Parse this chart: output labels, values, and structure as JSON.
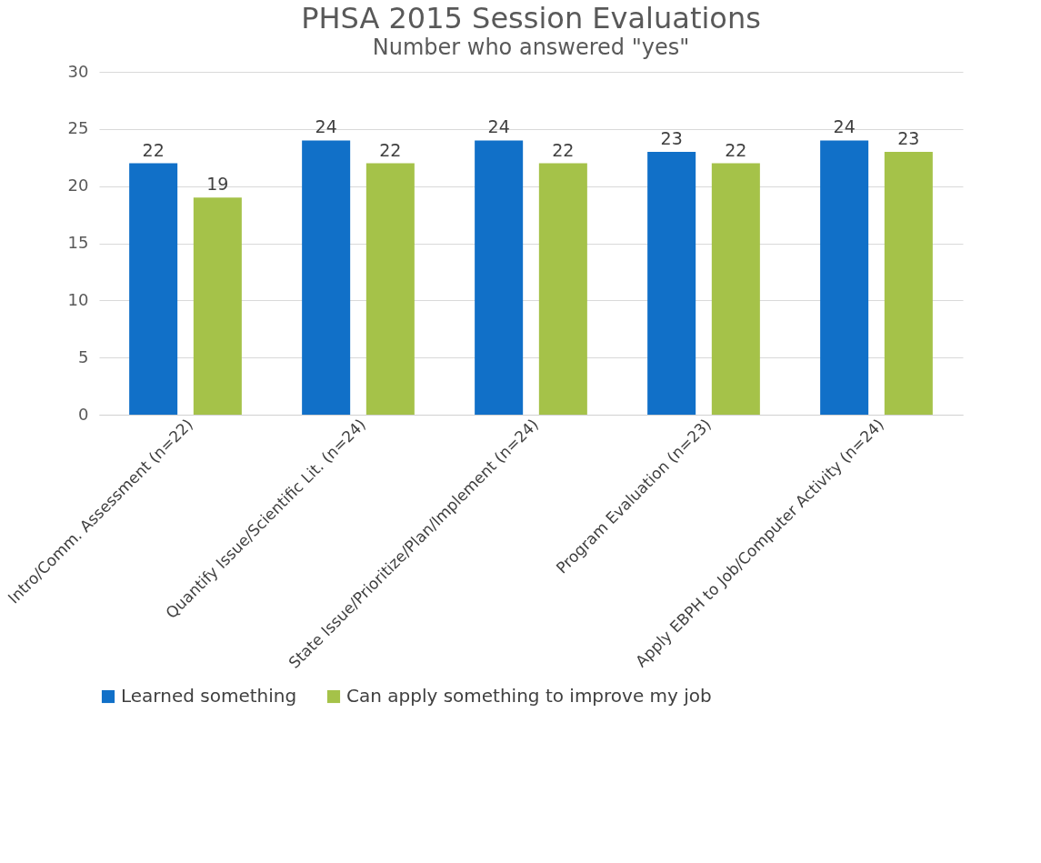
{
  "chart_data": {
    "type": "bar",
    "title": "PHSA 2015 Session Evaluations",
    "subtitle": "Number who answered \"yes\"",
    "categories": [
      "Intro/Comm. Assessment (n=22)",
      "Quantify Issue/Scientific Lit. (n=24)",
      "State Issue/Prioritize/Plan/Implement (n=24)",
      "Program Evaluation (n=23)",
      "Apply EBPH to Job/Computer Activity (n=24)"
    ],
    "series": [
      {
        "name": "Learned something",
        "color": "#1170c8",
        "values": [
          22,
          24,
          24,
          23,
          24
        ]
      },
      {
        "name": "Can apply something to improve my job",
        "color": "#a5c249",
        "values": [
          19,
          22,
          22,
          22,
          23
        ]
      }
    ],
    "ylim": [
      0,
      30
    ],
    "yticks": [
      0,
      5,
      10,
      15,
      20,
      25,
      30
    ],
    "grid": "y",
    "legend": "bottom",
    "data_labels": true
  }
}
